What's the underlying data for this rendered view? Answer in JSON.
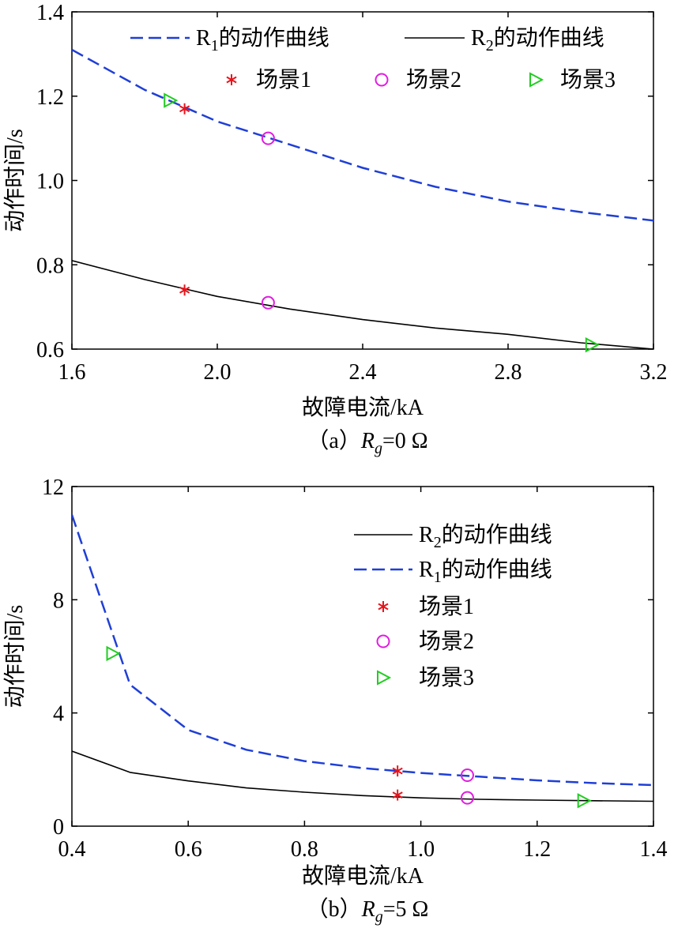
{
  "chart_data": [
    {
      "type": "line",
      "caption_prefix": "（a）",
      "caption_var": "R",
      "caption_sub": "g",
      "caption_suffix": "=0 Ω",
      "xlabel": "故障电流/kA",
      "ylabel": "动作时间/s",
      "xlim": [
        1.6,
        3.2
      ],
      "ylim": [
        0.6,
        1.4
      ],
      "xticks": [
        "1.6",
        "2.0",
        "2.4",
        "2.8",
        "3.2"
      ],
      "yticks": [
        "0.6",
        "0.8",
        "1.0",
        "1.2",
        "1.4"
      ],
      "grid": false,
      "legend_placement": "top, two rows",
      "series": [
        {
          "name": "R1的动作曲线",
          "name_main": "R",
          "name_sub": "1",
          "name_rest": "的动作曲线",
          "style": "dashed",
          "color": "#1f3fd6",
          "x": [
            1.6,
            1.8,
            2.0,
            2.2,
            2.4,
            2.6,
            2.8,
            3.0,
            3.2
          ],
          "y": [
            1.31,
            1.215,
            1.14,
            1.085,
            1.03,
            0.985,
            0.95,
            0.925,
            0.905
          ]
        },
        {
          "name": "R2的动作曲线",
          "name_main": "R",
          "name_sub": "2",
          "name_rest": "的动作曲线",
          "style": "solid",
          "color": "#000000",
          "x": [
            1.6,
            1.8,
            2.0,
            2.2,
            2.4,
            2.6,
            2.8,
            3.0,
            3.2
          ],
          "y": [
            0.81,
            0.765,
            0.725,
            0.695,
            0.67,
            0.65,
            0.635,
            0.615,
            0.6
          ]
        }
      ],
      "scenarios": [
        {
          "name": "场景1",
          "marker": "star",
          "color": "#e8141c",
          "points": [
            [
              1.91,
              1.17
            ],
            [
              1.91,
              0.74
            ]
          ]
        },
        {
          "name": "场景2",
          "marker": "circle",
          "color": "#e01ee0",
          "points": [
            [
              2.14,
              1.1
            ],
            [
              2.14,
              0.71
            ]
          ]
        },
        {
          "name": "场景3",
          "marker": "triangle",
          "color": "#22cc22",
          "points": [
            [
              1.87,
              1.19
            ],
            [
              3.03,
              0.61
            ]
          ]
        }
      ]
    },
    {
      "type": "line",
      "caption_prefix": "（b）",
      "caption_var": "R",
      "caption_sub": "g",
      "caption_suffix": "=5 Ω",
      "xlabel": "故障电流/kA",
      "ylabel": "动作时间/s",
      "xlim": [
        0.4,
        1.4
      ],
      "ylim": [
        0,
        12
      ],
      "xticks": [
        "0.4",
        "0.6",
        "0.8",
        "1.0",
        "1.2",
        "1.4"
      ],
      "yticks": [
        "0",
        "4",
        "8",
        "12"
      ],
      "grid": false,
      "legend_placement": "top-right",
      "series": [
        {
          "name": "R2的动作曲线",
          "name_main": "R",
          "name_sub": "2",
          "name_rest": "的动作曲线",
          "style": "solid",
          "color": "#000000",
          "x": [
            0.4,
            0.5,
            0.6,
            0.7,
            0.8,
            0.9,
            1.0,
            1.1,
            1.2,
            1.3,
            1.4
          ],
          "y": [
            2.65,
            1.9,
            1.6,
            1.35,
            1.2,
            1.08,
            1.0,
            0.95,
            0.92,
            0.9,
            0.88
          ]
        },
        {
          "name": "R1的动作曲线",
          "name_main": "R",
          "name_sub": "1",
          "name_rest": "的动作曲线",
          "style": "dashed",
          "color": "#1f3fd6",
          "x": [
            0.4,
            0.45,
            0.5,
            0.6,
            0.7,
            0.8,
            0.9,
            1.0,
            1.1,
            1.2,
            1.3,
            1.4
          ],
          "y": [
            11.0,
            8.0,
            5.0,
            3.4,
            2.7,
            2.3,
            2.05,
            1.88,
            1.75,
            1.62,
            1.52,
            1.45
          ]
        }
      ],
      "scenarios": [
        {
          "name": "场景1",
          "marker": "star",
          "color": "#e8141c",
          "points": [
            [
              0.96,
              1.95
            ],
            [
              0.96,
              1.1
            ]
          ]
        },
        {
          "name": "场景2",
          "marker": "circle",
          "color": "#e01ee0",
          "points": [
            [
              1.08,
              1.8
            ],
            [
              1.08,
              1.0
            ]
          ]
        },
        {
          "name": "场景3",
          "marker": "triangle",
          "color": "#22cc22",
          "points": [
            [
              0.47,
              6.1
            ],
            [
              1.28,
              0.9
            ]
          ]
        }
      ]
    }
  ]
}
